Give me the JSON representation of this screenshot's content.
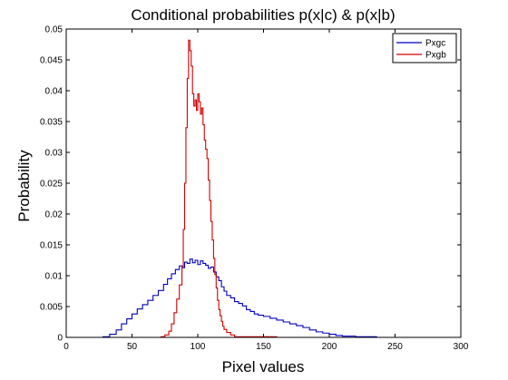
{
  "chart_data": {
    "type": "line",
    "title": "Conditional probabilities p(x|c) & p(x|b)",
    "xlabel": "Pixel values",
    "ylabel": "Probability",
    "xlim": [
      0,
      300
    ],
    "ylim": [
      0,
      0.05
    ],
    "xticks": [
      "0",
      "50",
      "100",
      "150",
      "200",
      "250",
      "300"
    ],
    "yticks": [
      "0",
      "0.005",
      "0.01",
      "0.015",
      "0.02",
      "0.025",
      "0.03",
      "0.035",
      "0.04",
      "0.045",
      "0.05"
    ],
    "grid": false,
    "legend_position": "top-right",
    "step": true,
    "series": [
      {
        "name": "Pxgc",
        "color": "#0000bf",
        "points": [
          [
            10,
            0
          ],
          [
            28,
            0.0001
          ],
          [
            33,
            0.0005
          ],
          [
            38,
            0.0012
          ],
          [
            42,
            0.0022
          ],
          [
            46,
            0.003
          ],
          [
            50,
            0.0038
          ],
          [
            54,
            0.0046
          ],
          [
            58,
            0.0053
          ],
          [
            62,
            0.006
          ],
          [
            66,
            0.0068
          ],
          [
            70,
            0.0076
          ],
          [
            74,
            0.0086
          ],
          [
            77,
            0.0095
          ],
          [
            80,
            0.0103
          ],
          [
            83,
            0.011
          ],
          [
            86,
            0.0116
          ],
          [
            88,
            0.0113
          ],
          [
            90,
            0.0122
          ],
          [
            92,
            0.012
          ],
          [
            94,
            0.0127
          ],
          [
            96,
            0.0121
          ],
          [
            98,
            0.0125
          ],
          [
            100,
            0.0118
          ],
          [
            102,
            0.0124
          ],
          [
            104,
            0.012
          ],
          [
            106,
            0.0117
          ],
          [
            108,
            0.0112
          ],
          [
            110,
            0.0114
          ],
          [
            112,
            0.0106
          ],
          [
            114,
            0.0098
          ],
          [
            116,
            0.0092
          ],
          [
            118,
            0.0082
          ],
          [
            120,
            0.0075
          ],
          [
            122,
            0.0068
          ],
          [
            125,
            0.0064
          ],
          [
            128,
            0.0058
          ],
          [
            131,
            0.0055
          ],
          [
            134,
            0.0051
          ],
          [
            137,
            0.0045
          ],
          [
            140,
            0.0042
          ],
          [
            143,
            0.0038
          ],
          [
            146,
            0.0036
          ],
          [
            150,
            0.0034
          ],
          [
            155,
            0.0031
          ],
          [
            160,
            0.0028
          ],
          [
            165,
            0.0025
          ],
          [
            170,
            0.0022
          ],
          [
            175,
            0.0019
          ],
          [
            180,
            0.0016
          ],
          [
            185,
            0.0012
          ],
          [
            190,
            0.0009
          ],
          [
            195,
            0.0007
          ],
          [
            200,
            0.0005
          ],
          [
            205,
            0.0003
          ],
          [
            210,
            0.0002
          ],
          [
            220,
            0.0001
          ],
          [
            236,
            0
          ]
        ]
      },
      {
        "name": "Pxgb",
        "color": "#d20000",
        "points": [
          [
            30,
            0
          ],
          [
            72,
            0.0001
          ],
          [
            75,
            0.0004
          ],
          [
            78,
            0.001
          ],
          [
            80,
            0.0022
          ],
          [
            82,
            0.004
          ],
          [
            84,
            0.0062
          ],
          [
            86,
            0.0085
          ],
          [
            88,
            0.0115
          ],
          [
            89,
            0.0175
          ],
          [
            90,
            0.025
          ],
          [
            91,
            0.034
          ],
          [
            92,
            0.042
          ],
          [
            93,
            0.0482
          ],
          [
            94,
            0.0465
          ],
          [
            95,
            0.044
          ],
          [
            96,
            0.0395
          ],
          [
            97,
            0.0375
          ],
          [
            98,
            0.0385
          ],
          [
            99,
            0.0368
          ],
          [
            100,
            0.0395
          ],
          [
            101,
            0.0382
          ],
          [
            102,
            0.0362
          ],
          [
            103,
            0.0372
          ],
          [
            104,
            0.0345
          ],
          [
            105,
            0.032
          ],
          [
            106,
            0.0305
          ],
          [
            107,
            0.029
          ],
          [
            108,
            0.0255
          ],
          [
            109,
            0.0222
          ],
          [
            110,
            0.0188
          ],
          [
            111,
            0.0158
          ],
          [
            112,
            0.0128
          ],
          [
            113,
            0.0102
          ],
          [
            114,
            0.008
          ],
          [
            115,
            0.006
          ],
          [
            116,
            0.0045
          ],
          [
            117,
            0.0035
          ],
          [
            118,
            0.0026
          ],
          [
            119,
            0.0018
          ],
          [
            120,
            0.0013
          ],
          [
            122,
            0.0008
          ],
          [
            125,
            0.0004
          ],
          [
            128,
            0.0001
          ],
          [
            160,
            0
          ]
        ]
      }
    ]
  }
}
